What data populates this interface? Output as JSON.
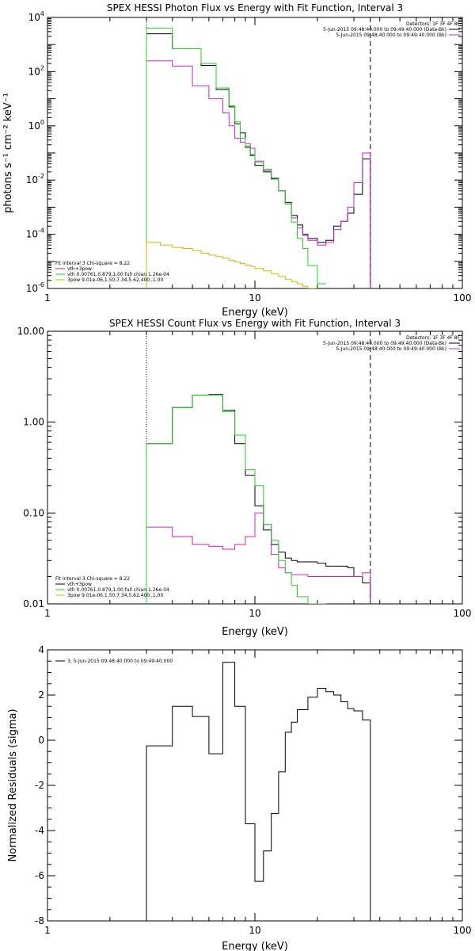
{
  "colors": {
    "black": "#000000",
    "magenta": "#d020d0",
    "green": "#20d020",
    "yellow": "#d8b400",
    "red": "#e02020"
  },
  "chart_data": [
    {
      "type": "line",
      "title": "SPEX HESSI Photon Flux vs Energy with Fit Function, Interval 3",
      "xlabel": "Energy  (keV)",
      "ylabel": "photons s⁻¹ cm⁻² keV⁻¹",
      "xscale": "log",
      "yscale": "log",
      "xlim": [
        1,
        100
      ],
      "ylim": [
        1e-06,
        10000
      ],
      "xticks": [
        "1",
        "10",
        "100"
      ],
      "yticks": [
        {
          "v": 1e-06,
          "base": "10",
          "exp": "-6"
        },
        {
          "v": 0.0001,
          "base": "10",
          "exp": "-4"
        },
        {
          "v": 0.01,
          "base": "10",
          "exp": "-2"
        },
        {
          "v": 1,
          "base": "10",
          "exp": "0"
        },
        {
          "v": 100,
          "base": "10",
          "exp": "2"
        },
        {
          "v": 10000,
          "base": "10",
          "exp": "4"
        }
      ],
      "vlines": [
        {
          "x": 3.0,
          "style": "dotted"
        },
        {
          "x": 36.0,
          "style": "dashed"
        }
      ],
      "legend_tr": {
        "header": "Detectors: 1F 3F 4F 8F",
        "entries": [
          {
            "label": "5-Jun-2015 09:48:40.000 to 09:49:40.000 (Data-Bk)",
            "color": "#000000"
          },
          {
            "label": "5-Jun-2015 09:48:40.000 to 09:49:40.000 (Bk)",
            "color": "#d020d0"
          }
        ]
      },
      "legend_bl": {
        "header": "Fit Interval  3   Chi-square = 8.22",
        "entries": [
          {
            "label": "vth+3pow",
            "color": "#e02020"
          },
          {
            "label": "vth 0.00761,0.879,1.00   full chian 1.26e-04",
            "color": "#20d020"
          },
          {
            "label": "3pow 9.01e-06,1.50,7.34,5.62,400.,1.00",
            "color": "#d8b400"
          }
        ]
      },
      "edges": [
        3.0,
        3.5,
        4.0,
        4.5,
        5.0,
        5.5,
        6.0,
        6.5,
        7.0,
        7.5,
        8.0,
        8.5,
        9.0,
        9.5,
        10.0,
        11.0,
        12.0,
        13.0,
        14.0,
        15.0,
        16.0,
        17.0,
        18.0,
        20.0,
        22.0,
        24.0,
        26.0,
        28.0,
        30.0,
        33.0,
        36.0
      ],
      "series": [
        {
          "name": "Data-Bk",
          "color": "#000000",
          "step": true,
          "values": [
            2500,
            2500,
            700,
            700,
            700,
            170,
            170,
            22,
            22,
            5.0,
            1.2,
            0.55,
            0.16,
            0.08,
            0.035,
            0.02,
            0.011,
            0.004,
            0.0015,
            0.0005,
            0.00022,
            0.0001,
            7e-05,
            5e-05,
            6e-05,
            0.0002,
            0.0003,
            0.0006,
            0.003,
            0.06
          ]
        },
        {
          "name": "Bk",
          "color": "#d020d0",
          "step": true,
          "values": [
            250,
            250,
            160,
            160,
            30,
            30,
            10,
            10,
            3.0,
            1.0,
            0.35,
            0.25,
            0.22,
            0.15,
            0.05,
            0.025,
            0.012,
            0.004,
            0.0013,
            0.0004,
            0.00017,
            9e-05,
            6e-05,
            4e-05,
            5e-05,
            0.00015,
            0.0003,
            0.001,
            0.008,
            0.1
          ]
        },
        {
          "name": "vth",
          "color": "#20d020",
          "step": true,
          "values": [
            4000,
            4000,
            700,
            700,
            700,
            200,
            200,
            25,
            25,
            5.5,
            1.4,
            0.35,
            0.18,
            0.09,
            0.045,
            0.022,
            0.012,
            0.004,
            0.0013,
            0.00028,
            7e-05,
            3e-05,
            7e-06,
            1.5e-06,
            null,
            null,
            null,
            null,
            null,
            null
          ]
        },
        {
          "name": "3pow",
          "color": "#d8b400",
          "step": true,
          "values": [
            5e-05,
            4e-05,
            3.3e-05,
            3e-05,
            2.5e-05,
            2e-05,
            1.7e-05,
            1.5e-05,
            1.3e-05,
            1.1e-05,
            9.5e-06,
            8.3e-06,
            7.3e-06,
            6.5e-06,
            5.5e-06,
            4.5e-06,
            3.5e-06,
            2.8e-06,
            2.2e-06,
            1.8e-06,
            1.5e-06,
            1.2e-06,
            1e-06,
            null,
            null,
            null,
            null,
            null,
            null,
            null
          ]
        }
      ]
    },
    {
      "type": "line",
      "title": "SPEX HESSI Count Flux vs Energy with Fit Function, Interval 3",
      "xlabel": "Energy  (keV)",
      "ylabel": "",
      "xscale": "log",
      "yscale": "log",
      "xlim": [
        1,
        100
      ],
      "ylim": [
        0.01,
        10
      ],
      "xticks": [
        "1",
        "10",
        "100"
      ],
      "yticks": [
        {
          "v": 0.01,
          "label": "0.01"
        },
        {
          "v": 0.1,
          "label": "0.10"
        },
        {
          "v": 1,
          "label": "1.00"
        },
        {
          "v": 10,
          "label": "10.00"
        }
      ],
      "vlines": [
        {
          "x": 3.0,
          "style": "dotted"
        },
        {
          "x": 36.0,
          "style": "dashed"
        }
      ],
      "legend_tr": {
        "header": "Detectors: 1F 3F 4F 8F",
        "entries": [
          {
            "label": "5-Jun-2015 09:48:40.000 to 09:49:40.000 (Data-Bk)",
            "color": "#000000"
          },
          {
            "label": "5-Jun-2015 09:48:40.000 to 09:49:40.000 (Bk)",
            "color": "#d020d0"
          }
        ]
      },
      "legend_bl": {
        "header": "Fit Interval  3   Chi-square = 8.22",
        "entries": [
          {
            "label": "vth+3pow",
            "color": "#000000"
          },
          {
            "label": "vth 0.00761,0.879,1.00   full chian 1.26e-04",
            "color": "#20d020"
          },
          {
            "label": "3pow 9.01e-06,1.50,7.34,5.62,400.,1.00",
            "color": "#d8b400"
          }
        ]
      },
      "edges": [
        3.0,
        4.0,
        5.0,
        6.0,
        7.0,
        8.0,
        9.0,
        10.0,
        11.0,
        12.0,
        13.0,
        14.0,
        15.0,
        16.0,
        18.0,
        20.0,
        22.0,
        24.0,
        26.0,
        28.0,
        30.0,
        33.0,
        36.0
      ],
      "series": [
        {
          "name": "Data-Bk",
          "color": "#000000",
          "step": true,
          "values": [
            0.58,
            1.45,
            1.98,
            2.02,
            1.35,
            0.58,
            0.26,
            0.12,
            0.065,
            0.045,
            0.037,
            0.032,
            0.03,
            0.029,
            0.029,
            0.028,
            0.026,
            0.026,
            0.026,
            0.025,
            0.02,
            0.017
          ]
        },
        {
          "name": "Bk",
          "color": "#d020d0",
          "step": true,
          "values": [
            0.07,
            0.055,
            0.045,
            0.043,
            0.04,
            0.045,
            0.055,
            0.1,
            0.075,
            0.035,
            0.025,
            0.022,
            0.021,
            0.021,
            0.02,
            0.02,
            0.02,
            0.02,
            0.02,
            0.02,
            0.02,
            0.022
          ]
        },
        {
          "name": "vth",
          "color": "#20d020",
          "step": true,
          "values": [
            0.58,
            1.45,
            1.98,
            1.98,
            1.3,
            0.72,
            0.3,
            0.2,
            0.075,
            0.05,
            0.03,
            0.022,
            0.016,
            0.012,
            0.01,
            0.01,
            null,
            null,
            null,
            null,
            null,
            null
          ]
        },
        {
          "name": "3pow",
          "color": "#d8b400",
          "step": true,
          "values": [
            null,
            null,
            null,
            null,
            null,
            null,
            null,
            null,
            null,
            null,
            null,
            null,
            null,
            null,
            null,
            null,
            null,
            null,
            null,
            null,
            null,
            null
          ]
        }
      ]
    },
    {
      "type": "line",
      "title": "",
      "xlabel": "Energy  (keV)",
      "ylabel": "Normalized Residuals  (sigma)",
      "xscale": "log",
      "yscale": "linear",
      "xlim": [
        1,
        100
      ],
      "ylim": [
        -8,
        4
      ],
      "xticks": [
        "1",
        "10",
        "100"
      ],
      "yticks": [
        {
          "v": -8,
          "label": "-8"
        },
        {
          "v": -6,
          "label": "-6"
        },
        {
          "v": -4,
          "label": "-4"
        },
        {
          "v": -2,
          "label": "-2"
        },
        {
          "v": 0,
          "label": "0"
        },
        {
          "v": 2,
          "label": "2"
        },
        {
          "v": 4,
          "label": "4"
        }
      ],
      "vlines": [],
      "legend_tl": {
        "entries": [
          {
            "label": "3,  5-Jun-2015 09:48:40.000 to 09:49:40.000",
            "color": "#000000"
          }
        ]
      },
      "edges": [
        3.0,
        4.0,
        5.0,
        6.0,
        7.0,
        8.0,
        9.0,
        10.0,
        11.0,
        12.0,
        13.0,
        14.0,
        15.0,
        16.0,
        18.0,
        20.0,
        22.0,
        24.0,
        26.0,
        28.0,
        30.0,
        33.0,
        36.0
      ],
      "series": [
        {
          "name": "residuals",
          "color": "#000000",
          "step": true,
          "drop_to_floor": true,
          "values": [
            -0.25,
            1.5,
            1.05,
            -0.6,
            3.45,
            1.5,
            -3.7,
            -6.25,
            -4.9,
            -3.25,
            -1.4,
            0.35,
            0.8,
            1.35,
            1.9,
            2.3,
            2.15,
            2.0,
            1.7,
            1.4,
            1.3,
            0.9
          ]
        }
      ]
    }
  ]
}
